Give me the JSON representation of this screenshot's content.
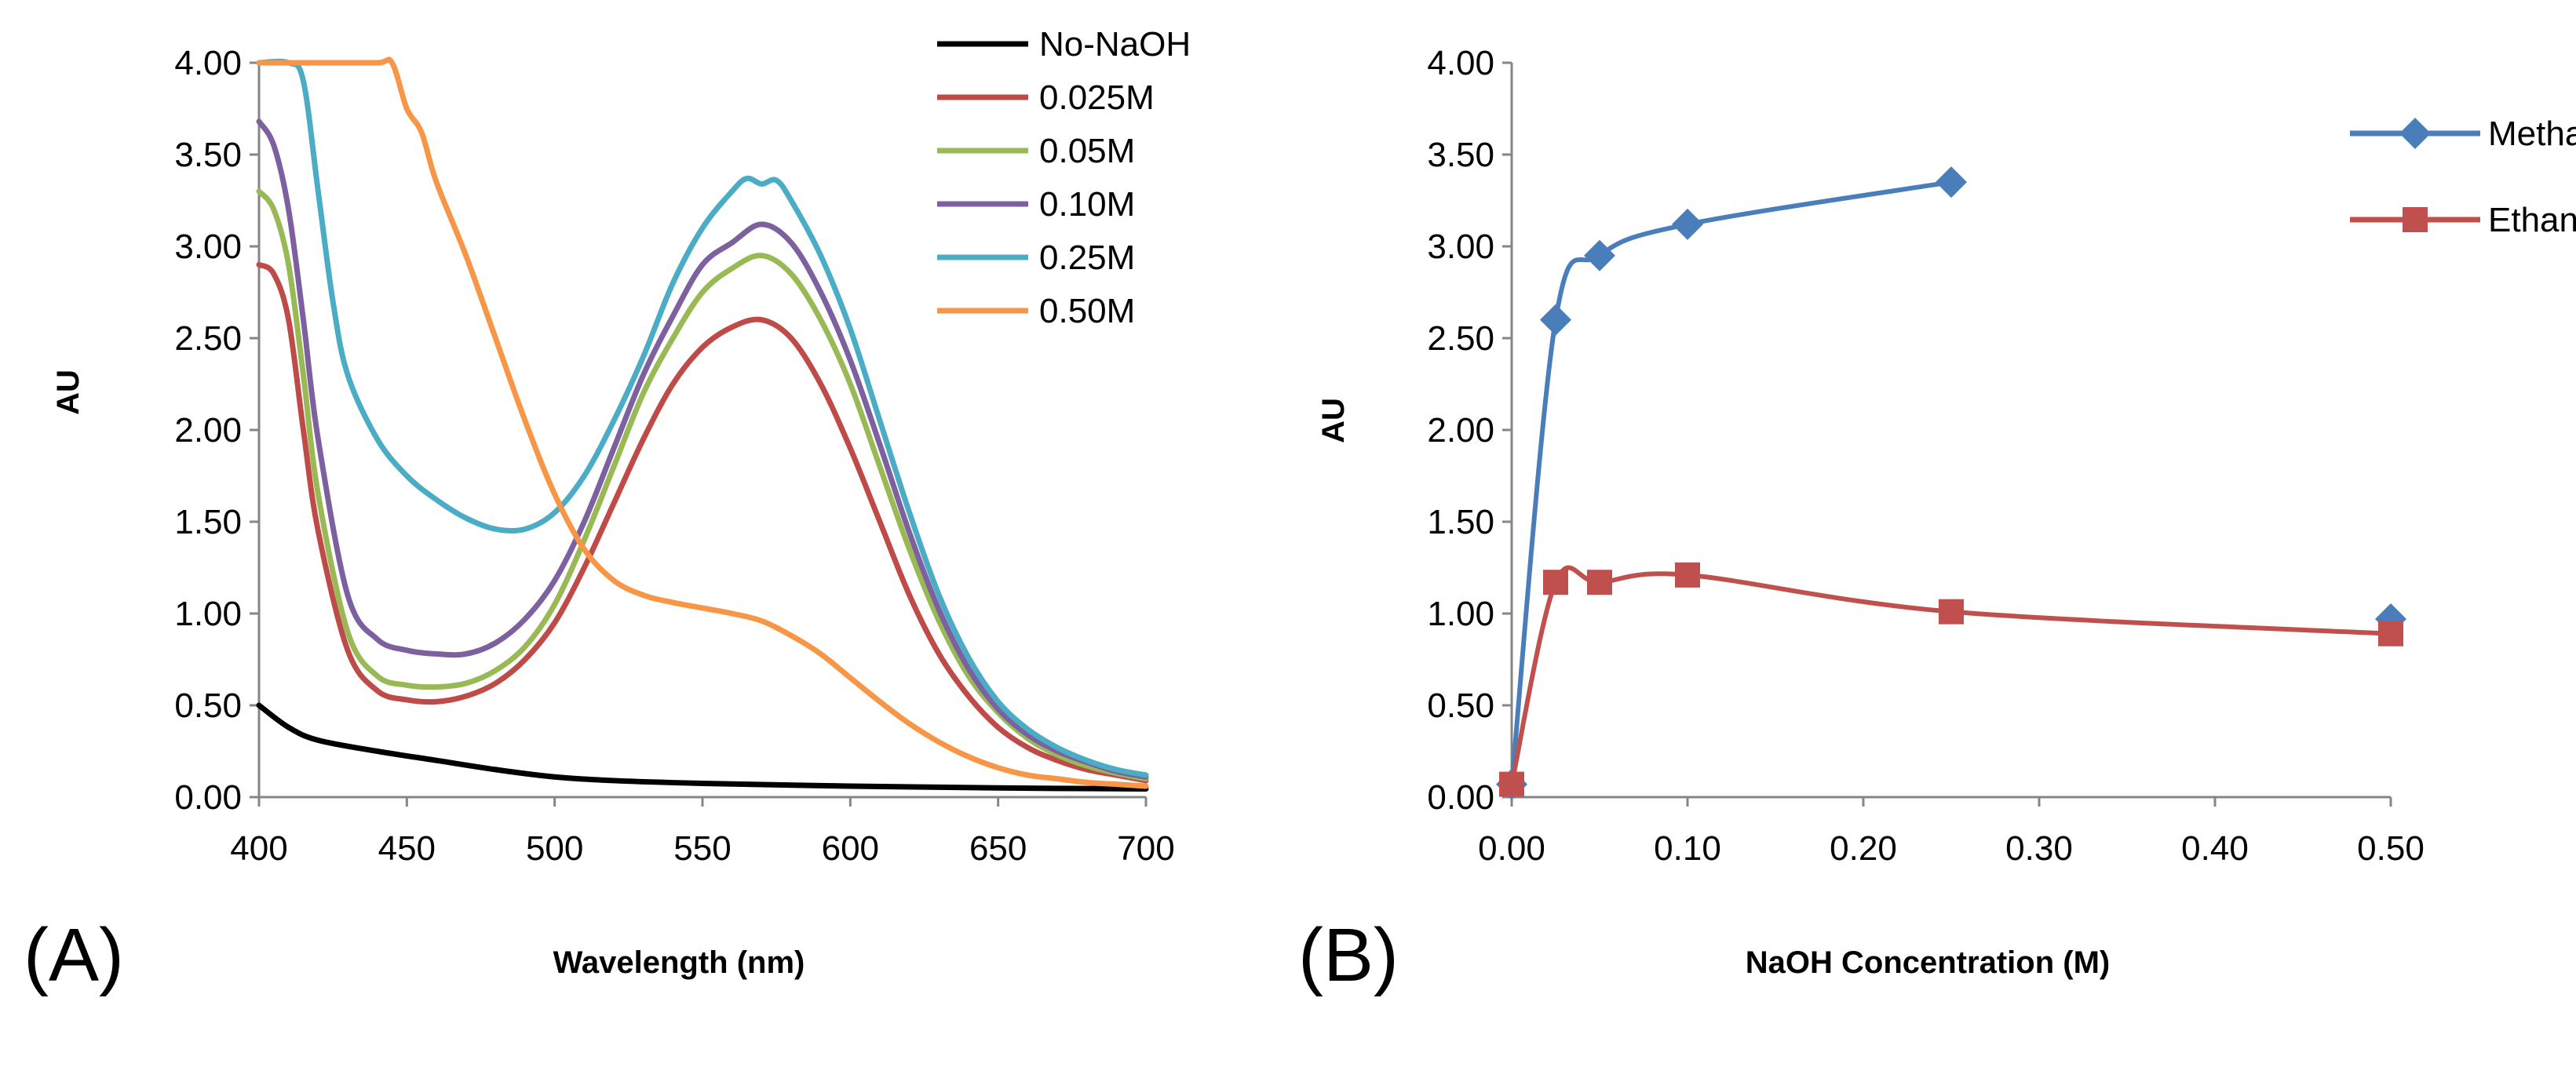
{
  "chart_data": [
    {
      "type": "line",
      "panel_label": "(A)",
      "xlabel": "Wavelength (nm)",
      "ylabel": "AU",
      "xlim": [
        400,
        700
      ],
      "ylim": [
        0,
        4
      ],
      "xticks": [
        "400",
        "450",
        "500",
        "550",
        "600",
        "650",
        "700"
      ],
      "yticks": [
        "0.00",
        "0.50",
        "1.00",
        "1.50",
        "2.00",
        "2.50",
        "3.00",
        "3.50",
        "4.00"
      ],
      "legend_position": "top-right",
      "series": [
        {
          "name": "No-NaOH",
          "color": "#000000",
          "points": [
            [
              400,
              0.5
            ],
            [
              410,
              0.38
            ],
            [
              420,
              0.31
            ],
            [
              440,
              0.25
            ],
            [
              460,
              0.2
            ],
            [
              480,
              0.15
            ],
            [
              500,
              0.11
            ],
            [
              520,
              0.09
            ],
            [
              550,
              0.075
            ],
            [
              600,
              0.06
            ],
            [
              650,
              0.05
            ],
            [
              700,
              0.045
            ]
          ]
        },
        {
          "name": "0.025M",
          "color": "#be4b48",
          "points": [
            [
              400,
              2.9
            ],
            [
              405,
              2.85
            ],
            [
              410,
              2.6
            ],
            [
              415,
              2.0
            ],
            [
              420,
              1.45
            ],
            [
              430,
              0.8
            ],
            [
              440,
              0.58
            ],
            [
              450,
              0.53
            ],
            [
              460,
              0.52
            ],
            [
              470,
              0.55
            ],
            [
              480,
              0.62
            ],
            [
              490,
              0.75
            ],
            [
              500,
              0.95
            ],
            [
              510,
              1.25
            ],
            [
              520,
              1.6
            ],
            [
              530,
              1.95
            ],
            [
              540,
              2.25
            ],
            [
              550,
              2.45
            ],
            [
              560,
              2.56
            ],
            [
              570,
              2.6
            ],
            [
              580,
              2.5
            ],
            [
              590,
              2.25
            ],
            [
              600,
              1.9
            ],
            [
              610,
              1.5
            ],
            [
              620,
              1.1
            ],
            [
              630,
              0.78
            ],
            [
              640,
              0.55
            ],
            [
              650,
              0.38
            ],
            [
              660,
              0.27
            ],
            [
              670,
              0.2
            ],
            [
              680,
              0.15
            ],
            [
              690,
              0.12
            ],
            [
              700,
              0.09
            ]
          ]
        },
        {
          "name": "0.05M",
          "color": "#98b954",
          "points": [
            [
              400,
              3.3
            ],
            [
              405,
              3.2
            ],
            [
              410,
              2.9
            ],
            [
              415,
              2.3
            ],
            [
              420,
              1.65
            ],
            [
              430,
              0.9
            ],
            [
              440,
              0.66
            ],
            [
              450,
              0.61
            ],
            [
              460,
              0.6
            ],
            [
              470,
              0.62
            ],
            [
              480,
              0.69
            ],
            [
              490,
              0.82
            ],
            [
              500,
              1.05
            ],
            [
              510,
              1.4
            ],
            [
              520,
              1.8
            ],
            [
              530,
              2.2
            ],
            [
              540,
              2.5
            ],
            [
              550,
              2.75
            ],
            [
              560,
              2.88
            ],
            [
              570,
              2.95
            ],
            [
              580,
              2.85
            ],
            [
              590,
              2.6
            ],
            [
              600,
              2.25
            ],
            [
              610,
              1.8
            ],
            [
              620,
              1.35
            ],
            [
              630,
              0.96
            ],
            [
              640,
              0.66
            ],
            [
              650,
              0.46
            ],
            [
              660,
              0.32
            ],
            [
              670,
              0.23
            ],
            [
              680,
              0.17
            ],
            [
              690,
              0.13
            ],
            [
              700,
              0.1
            ]
          ]
        },
        {
          "name": "0.10M",
          "color": "#7d60a0",
          "points": [
            [
              400,
              3.68
            ],
            [
              405,
              3.55
            ],
            [
              410,
              3.2
            ],
            [
              415,
              2.6
            ],
            [
              420,
              1.95
            ],
            [
              430,
              1.1
            ],
            [
              440,
              0.86
            ],
            [
              450,
              0.8
            ],
            [
              460,
              0.78
            ],
            [
              470,
              0.78
            ],
            [
              480,
              0.84
            ],
            [
              490,
              0.97
            ],
            [
              500,
              1.18
            ],
            [
              510,
              1.5
            ],
            [
              520,
              1.9
            ],
            [
              530,
              2.3
            ],
            [
              540,
              2.62
            ],
            [
              550,
              2.9
            ],
            [
              560,
              3.02
            ],
            [
              570,
              3.12
            ],
            [
              580,
              3.02
            ],
            [
              590,
              2.75
            ],
            [
              600,
              2.38
            ],
            [
              610,
              1.92
            ],
            [
              620,
              1.44
            ],
            [
              630,
              1.02
            ],
            [
              640,
              0.7
            ],
            [
              650,
              0.48
            ],
            [
              660,
              0.34
            ],
            [
              670,
              0.25
            ],
            [
              680,
              0.19
            ],
            [
              690,
              0.14
            ],
            [
              700,
              0.11
            ]
          ]
        },
        {
          "name": "0.25M",
          "color": "#4bacc6",
          "points": [
            [
              400,
              4.0
            ],
            [
              410,
              4.0
            ],
            [
              415,
              3.9
            ],
            [
              420,
              3.3
            ],
            [
              425,
              2.7
            ],
            [
              430,
              2.3
            ],
            [
              440,
              1.95
            ],
            [
              450,
              1.75
            ],
            [
              460,
              1.62
            ],
            [
              470,
              1.52
            ],
            [
              480,
              1.46
            ],
            [
              490,
              1.46
            ],
            [
              500,
              1.55
            ],
            [
              510,
              1.75
            ],
            [
              520,
              2.05
            ],
            [
              530,
              2.4
            ],
            [
              540,
              2.8
            ],
            [
              550,
              3.1
            ],
            [
              560,
              3.3
            ],
            [
              565,
              3.37
            ],
            [
              570,
              3.34
            ],
            [
              575,
              3.36
            ],
            [
              580,
              3.25
            ],
            [
              590,
              2.95
            ],
            [
              600,
              2.55
            ],
            [
              610,
              2.05
            ],
            [
              620,
              1.55
            ],
            [
              630,
              1.1
            ],
            [
              640,
              0.76
            ],
            [
              650,
              0.52
            ],
            [
              660,
              0.37
            ],
            [
              670,
              0.27
            ],
            [
              680,
              0.2
            ],
            [
              690,
              0.15
            ],
            [
              700,
              0.12
            ]
          ]
        },
        {
          "name": "0.50M",
          "color": "#f79646",
          "points": [
            [
              400,
              4.0
            ],
            [
              420,
              4.0
            ],
            [
              440,
              4.0
            ],
            [
              445,
              4.0
            ],
            [
              450,
              3.75
            ],
            [
              455,
              3.62
            ],
            [
              460,
              3.35
            ],
            [
              470,
              2.95
            ],
            [
              480,
              2.5
            ],
            [
              490,
              2.05
            ],
            [
              500,
              1.65
            ],
            [
              510,
              1.35
            ],
            [
              520,
              1.18
            ],
            [
              530,
              1.1
            ],
            [
              540,
              1.06
            ],
            [
              550,
              1.03
            ],
            [
              560,
              1.0
            ],
            [
              570,
              0.96
            ],
            [
              580,
              0.88
            ],
            [
              590,
              0.78
            ],
            [
              600,
              0.65
            ],
            [
              610,
              0.52
            ],
            [
              620,
              0.4
            ],
            [
              630,
              0.3
            ],
            [
              640,
              0.22
            ],
            [
              650,
              0.16
            ],
            [
              660,
              0.12
            ],
            [
              670,
              0.1
            ],
            [
              680,
              0.08
            ],
            [
              690,
              0.07
            ],
            [
              700,
              0.06
            ]
          ]
        }
      ]
    },
    {
      "type": "line",
      "panel_label": "(B)",
      "xlabel": "NaOH Concentration (M)",
      "ylabel": "AU",
      "xlim": [
        0,
        0.5
      ],
      "ylim": [
        0,
        4
      ],
      "xticks": [
        "0.00",
        "0.10",
        "0.20",
        "0.30",
        "0.40",
        "0.50"
      ],
      "yticks": [
        "0.00",
        "0.50",
        "1.00",
        "1.50",
        "2.00",
        "2.50",
        "3.00",
        "3.50",
        "4.00"
      ],
      "legend_position": "top-right",
      "series": [
        {
          "name": "Methanol",
          "color": "#4a7ebb",
          "marker": "diamond",
          "points": [
            [
              0,
              0.07
            ],
            [
              0.025,
              2.6
            ],
            [
              0.05,
              2.95
            ],
            [
              0.1,
              3.12
            ],
            [
              0.25,
              3.35
            ]
          ],
          "unconnected_points": [
            [
              0.5,
              0.97
            ]
          ]
        },
        {
          "name": "Ethanol",
          "color": "#c0504d",
          "marker": "square",
          "points": [
            [
              0,
              0.07
            ],
            [
              0.025,
              1.17
            ],
            [
              0.05,
              1.17
            ],
            [
              0.1,
              1.21
            ],
            [
              0.25,
              1.01
            ],
            [
              0.5,
              0.89
            ]
          ],
          "unconnected_points": []
        }
      ]
    }
  ]
}
